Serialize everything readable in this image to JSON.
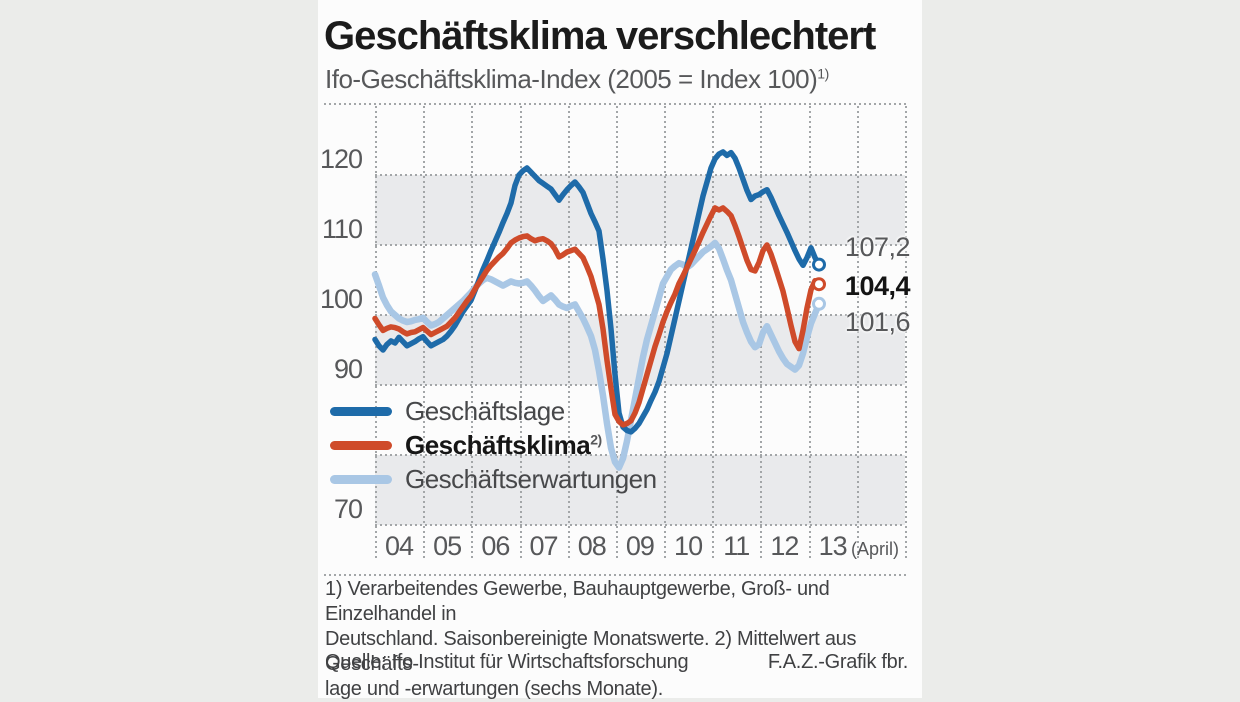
{
  "title": "Geschäftsklima verschlechtert",
  "subtitle": "Ifo-Geschäftsklima-Index (2005 = Index 100)",
  "subtitle_marker": "1)",
  "chart_data": {
    "type": "line",
    "title": "Geschäftsklima verschlechtert",
    "subtitle": "Ifo-Geschäftsklima-Index (2005 = Index 100) 1)",
    "x_unit": "month, Jan 2004 – Apr 2013",
    "x_tick_labels": [
      "04",
      "05",
      "06",
      "07",
      "08",
      "09",
      "10",
      "11",
      "12",
      "13"
    ],
    "x_suffix_label": "(April)",
    "y_tick_labels_shown": [
      "120",
      "110",
      "100",
      "90",
      "70"
    ],
    "y_tick_values_shown": [
      120,
      110,
      100,
      90,
      70
    ],
    "y_gridlines": [
      120,
      110,
      100,
      90,
      80,
      70
    ],
    "shaded_bands": [
      [
        120,
        110
      ],
      [
        100,
        90
      ],
      [
        80,
        70
      ]
    ],
    "ylim": [
      70,
      130
    ],
    "grid": "dotted",
    "legend_position": "inside-bottom-left",
    "series": [
      {
        "name": "Geschäftslage",
        "color": "#1e6ba9",
        "end_label": "107,2",
        "end_value": 107.2,
        "values": [
          96.5,
          95.6,
          95.0,
          95.8,
          96.3,
          96.0,
          96.8,
          96.2,
          95.6,
          95.9,
          96.2,
          96.6,
          96.9,
          96.2,
          95.6,
          95.9,
          96.2,
          96.5,
          97.0,
          97.7,
          98.5,
          99.5,
          100.5,
          101.3,
          102.1,
          103.5,
          105.0,
          106.5,
          107.8,
          109.2,
          110.5,
          111.8,
          113.2,
          114.5,
          116.0,
          118.5,
          120.0,
          120.6,
          121.0,
          120.4,
          119.8,
          119.2,
          118.8,
          118.4,
          118.0,
          117.2,
          116.4,
          117.2,
          117.9,
          118.5,
          119.0,
          118.3,
          117.5,
          116.0,
          114.5,
          113.3,
          112.0,
          108.0,
          103.5,
          98.0,
          91.5,
          86.0,
          84.0,
          83.5,
          83.3,
          83.8,
          84.5,
          85.5,
          86.5,
          87.8,
          89.0,
          90.5,
          92.5,
          94.5,
          97.0,
          99.5,
          102.0,
          104.5,
          107.0,
          109.5,
          112.0,
          114.5,
          117.0,
          119.0,
          121.0,
          122.3,
          123.0,
          123.3,
          122.8,
          123.2,
          122.4,
          121.0,
          119.4,
          117.8,
          116.5,
          117.0,
          117.2,
          117.6,
          117.9,
          116.8,
          115.5,
          114.2,
          113.0,
          111.8,
          110.5,
          109.2,
          108.0,
          107.1,
          108.2,
          109.6,
          108.2,
          107.2
        ]
      },
      {
        "name": "Geschäftsklima",
        "footnote_marker": "2)",
        "color": "#cf4b2a",
        "end_label": "104,4",
        "end_value": 104.4,
        "values": [
          99.5,
          98.6,
          97.8,
          98.1,
          98.3,
          98.2,
          98.0,
          97.6,
          97.3,
          97.5,
          97.6,
          97.9,
          98.2,
          97.7,
          97.2,
          97.5,
          97.8,
          98.1,
          98.4,
          99.0,
          99.6,
          100.4,
          101.2,
          102.0,
          102.7,
          103.7,
          104.6,
          105.5,
          106.4,
          107.1,
          107.7,
          108.3,
          108.8,
          109.5,
          110.3,
          110.7,
          111.0,
          111.2,
          111.3,
          110.9,
          110.6,
          110.8,
          110.9,
          110.6,
          110.2,
          109.4,
          108.3,
          108.6,
          109.0,
          109.2,
          109.4,
          108.8,
          108.2,
          106.9,
          105.5,
          103.5,
          101.5,
          98.0,
          93.5,
          89.5,
          85.8,
          84.8,
          84.3,
          84.5,
          84.9,
          86.0,
          87.5,
          89.5,
          91.5,
          93.5,
          95.5,
          97.2,
          99.0,
          100.5,
          101.8,
          103.0,
          104.5,
          105.6,
          106.8,
          108.0,
          109.2,
          110.5,
          111.8,
          113.0,
          114.2,
          115.3,
          115.0,
          115.3,
          114.8,
          114.2,
          112.8,
          111.2,
          109.5,
          107.8,
          106.5,
          106.3,
          107.5,
          109.2,
          110.0,
          108.7,
          107.0,
          105.2,
          103.4,
          101.0,
          98.5,
          96.2,
          95.2,
          97.8,
          101.0,
          103.6,
          104.9,
          104.4
        ]
      },
      {
        "name": "Geschäftserwartungen",
        "color": "#a9c7e5",
        "end_label": "101,6",
        "end_value": 101.6,
        "values": [
          105.8,
          104.2,
          102.5,
          101.4,
          100.5,
          100.0,
          99.5,
          99.2,
          99.0,
          99.1,
          99.3,
          99.4,
          99.6,
          99.0,
          98.5,
          98.7,
          99.0,
          99.5,
          100.0,
          100.5,
          101.0,
          101.5,
          102.0,
          102.6,
          103.2,
          103.9,
          104.5,
          105.0,
          105.3,
          105.1,
          104.8,
          104.5,
          104.2,
          104.5,
          104.8,
          104.6,
          104.5,
          104.6,
          104.8,
          104.2,
          103.5,
          102.7,
          102.0,
          102.4,
          102.8,
          102.2,
          101.5,
          101.2,
          101.0,
          101.3,
          101.5,
          100.5,
          99.5,
          98.3,
          97.0,
          95.0,
          92.0,
          88.5,
          84.5,
          81.0,
          79.0,
          78.2,
          79.5,
          82.0,
          85.0,
          88.0,
          91.0,
          94.0,
          96.5,
          98.5,
          100.5,
          102.5,
          104.5,
          105.5,
          106.5,
          107.0,
          107.4,
          107.2,
          106.8,
          107.2,
          107.8,
          108.4,
          109.0,
          109.4,
          109.8,
          110.3,
          109.5,
          108.0,
          106.4,
          105.0,
          103.0,
          101.0,
          99.0,
          97.5,
          96.2,
          95.4,
          95.8,
          97.5,
          98.4,
          97.2,
          96.0,
          94.8,
          93.8,
          93.0,
          92.6,
          92.2,
          92.8,
          94.5,
          96.8,
          98.8,
          100.2,
          101.6
        ]
      }
    ]
  },
  "footnotes": {
    "line1": "1) Verarbeitendes Gewerbe, Bauhauptgewerbe, Groß- und Einzelhandel in",
    "line2": "Deutschland. Saisonbereinigte Monatswerte. 2) Mittelwert aus Geschäfts-",
    "line3": "lage und -erwartungen (sechs Monate)."
  },
  "source": "Quelle: Ifo Institut für Wirtschaftsforschung",
  "credit": "F.A.Z.-Grafik fbr.",
  "colors": {
    "page_background": "#ebecea",
    "card_background": "#fcfcfc",
    "band_gray": "#e9eaec",
    "grid_dots": "#a3a6a8",
    "axis_text": "#57585a",
    "title_text": "#1b1b1b"
  }
}
